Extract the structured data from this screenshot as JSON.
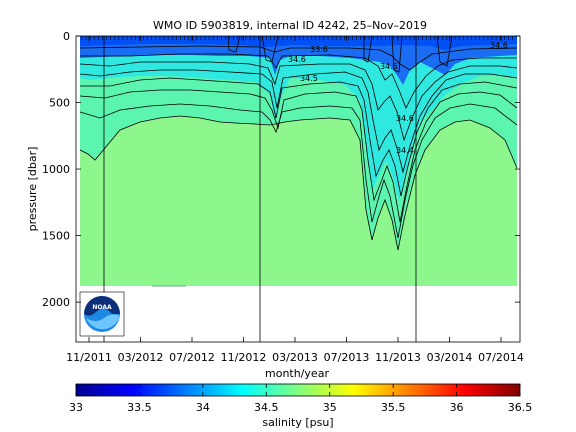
{
  "chart_data": {
    "type": "heatmap",
    "title": "WMO ID 5903819, internal ID 4242, 25–Nov–2019",
    "xlabel": "month/year",
    "ylabel": "pressure [dbar]",
    "x_tick_labels": [
      "11/2011",
      "03/2012",
      "07/2012",
      "11/2012",
      "03/2013",
      "07/2013",
      "11/2013",
      "03/2014",
      "07/2014"
    ],
    "y_ticks": [
      0,
      500,
      1000,
      1500,
      2000
    ],
    "ylim": [
      2300,
      0
    ],
    "colorbar": {
      "label": "salinity [psu]",
      "range": [
        33,
        36.5
      ],
      "tick_labels": [
        "33",
        "33.5",
        "34",
        "34.5",
        "35",
        "35.5",
        "36",
        "36.5"
      ],
      "colormap": "jet"
    },
    "fill_bottom_dbar": 1860,
    "contour_labels": [
      "34.5",
      "34.6",
      "33.6",
      "34.5",
      "34.6",
      "34.4",
      "34.6"
    ],
    "grid": false,
    "logo": "NOAA"
  },
  "colors": {
    "deep": "#8df78d",
    "mid": "#5cf5b0",
    "upper": "#2fe8e0",
    "surface": "#1a6cf2",
    "surface_dark": "#0040ff",
    "outline": "#000000"
  }
}
